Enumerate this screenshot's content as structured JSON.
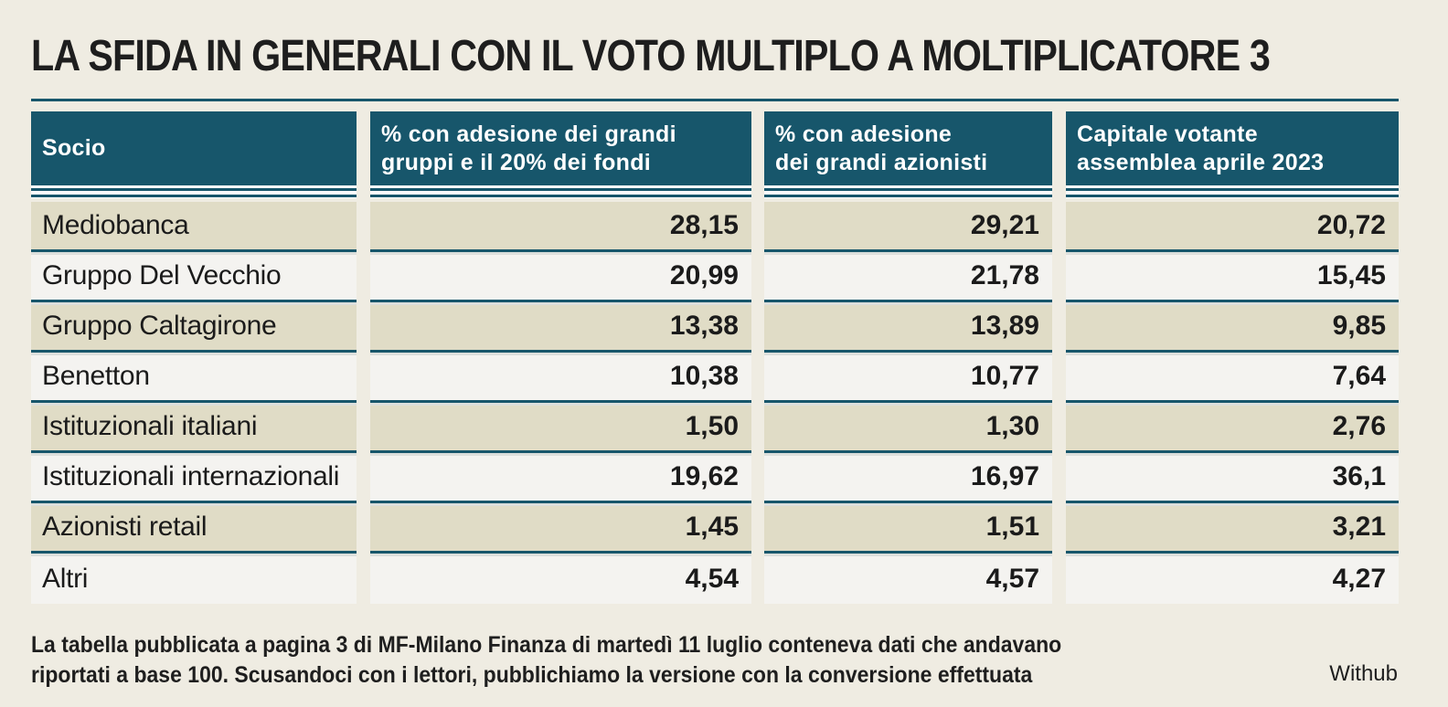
{
  "title": "LA SFIDA IN GENERALI CON IL VOTO MULTIPLO A MOLTIPLICATORE 3",
  "note_line1": "La tabella pubblicata a pagina 3 di MF-Milano Finanza di martedì 11 luglio conteneva dati che andavano",
  "note_line2": "riportati a base 100. Scusandoci con i lettori, pubblichiamo la versione con la conversione effettuata",
  "source": "Withub",
  "colors": {
    "header": "#17566b",
    "band": "#e0dcc6",
    "row": "#f4f3f0",
    "background": "#efece2"
  },
  "chart_data": {
    "type": "table",
    "columns": [
      "Socio",
      "% con adesione dei grandi gruppi e il 20% dei fondi",
      "% con adesione dei grandi azionisti",
      "Capitale votante assemblea aprile 2023"
    ],
    "header_lines": [
      [
        "Socio"
      ],
      [
        "% con adesione dei grandi",
        "gruppi e il 20% dei fondi"
      ],
      [
        "% con adesione",
        "dei grandi azionisti"
      ],
      [
        "Capitale votante",
        "assemblea aprile 2023"
      ]
    ],
    "rows": [
      [
        "Mediobanca",
        "28,15",
        "29,21",
        "20,72"
      ],
      [
        "Gruppo Del Vecchio",
        "20,99",
        "21,78",
        "15,45"
      ],
      [
        "Gruppo Caltagirone",
        "13,38",
        "13,89",
        "9,85"
      ],
      [
        "Benetton",
        "10,38",
        "10,77",
        "7,64"
      ],
      [
        "Istituzionali italiani",
        "1,50",
        "1,30",
        "2,76"
      ],
      [
        "Istituzionali internazionali",
        "19,62",
        "16,97",
        "36,1"
      ],
      [
        "Azionisti retail",
        "1,45",
        "1,51",
        "3,21"
      ],
      [
        "Altri",
        "4,54",
        "4,57",
        "4,27"
      ]
    ]
  }
}
